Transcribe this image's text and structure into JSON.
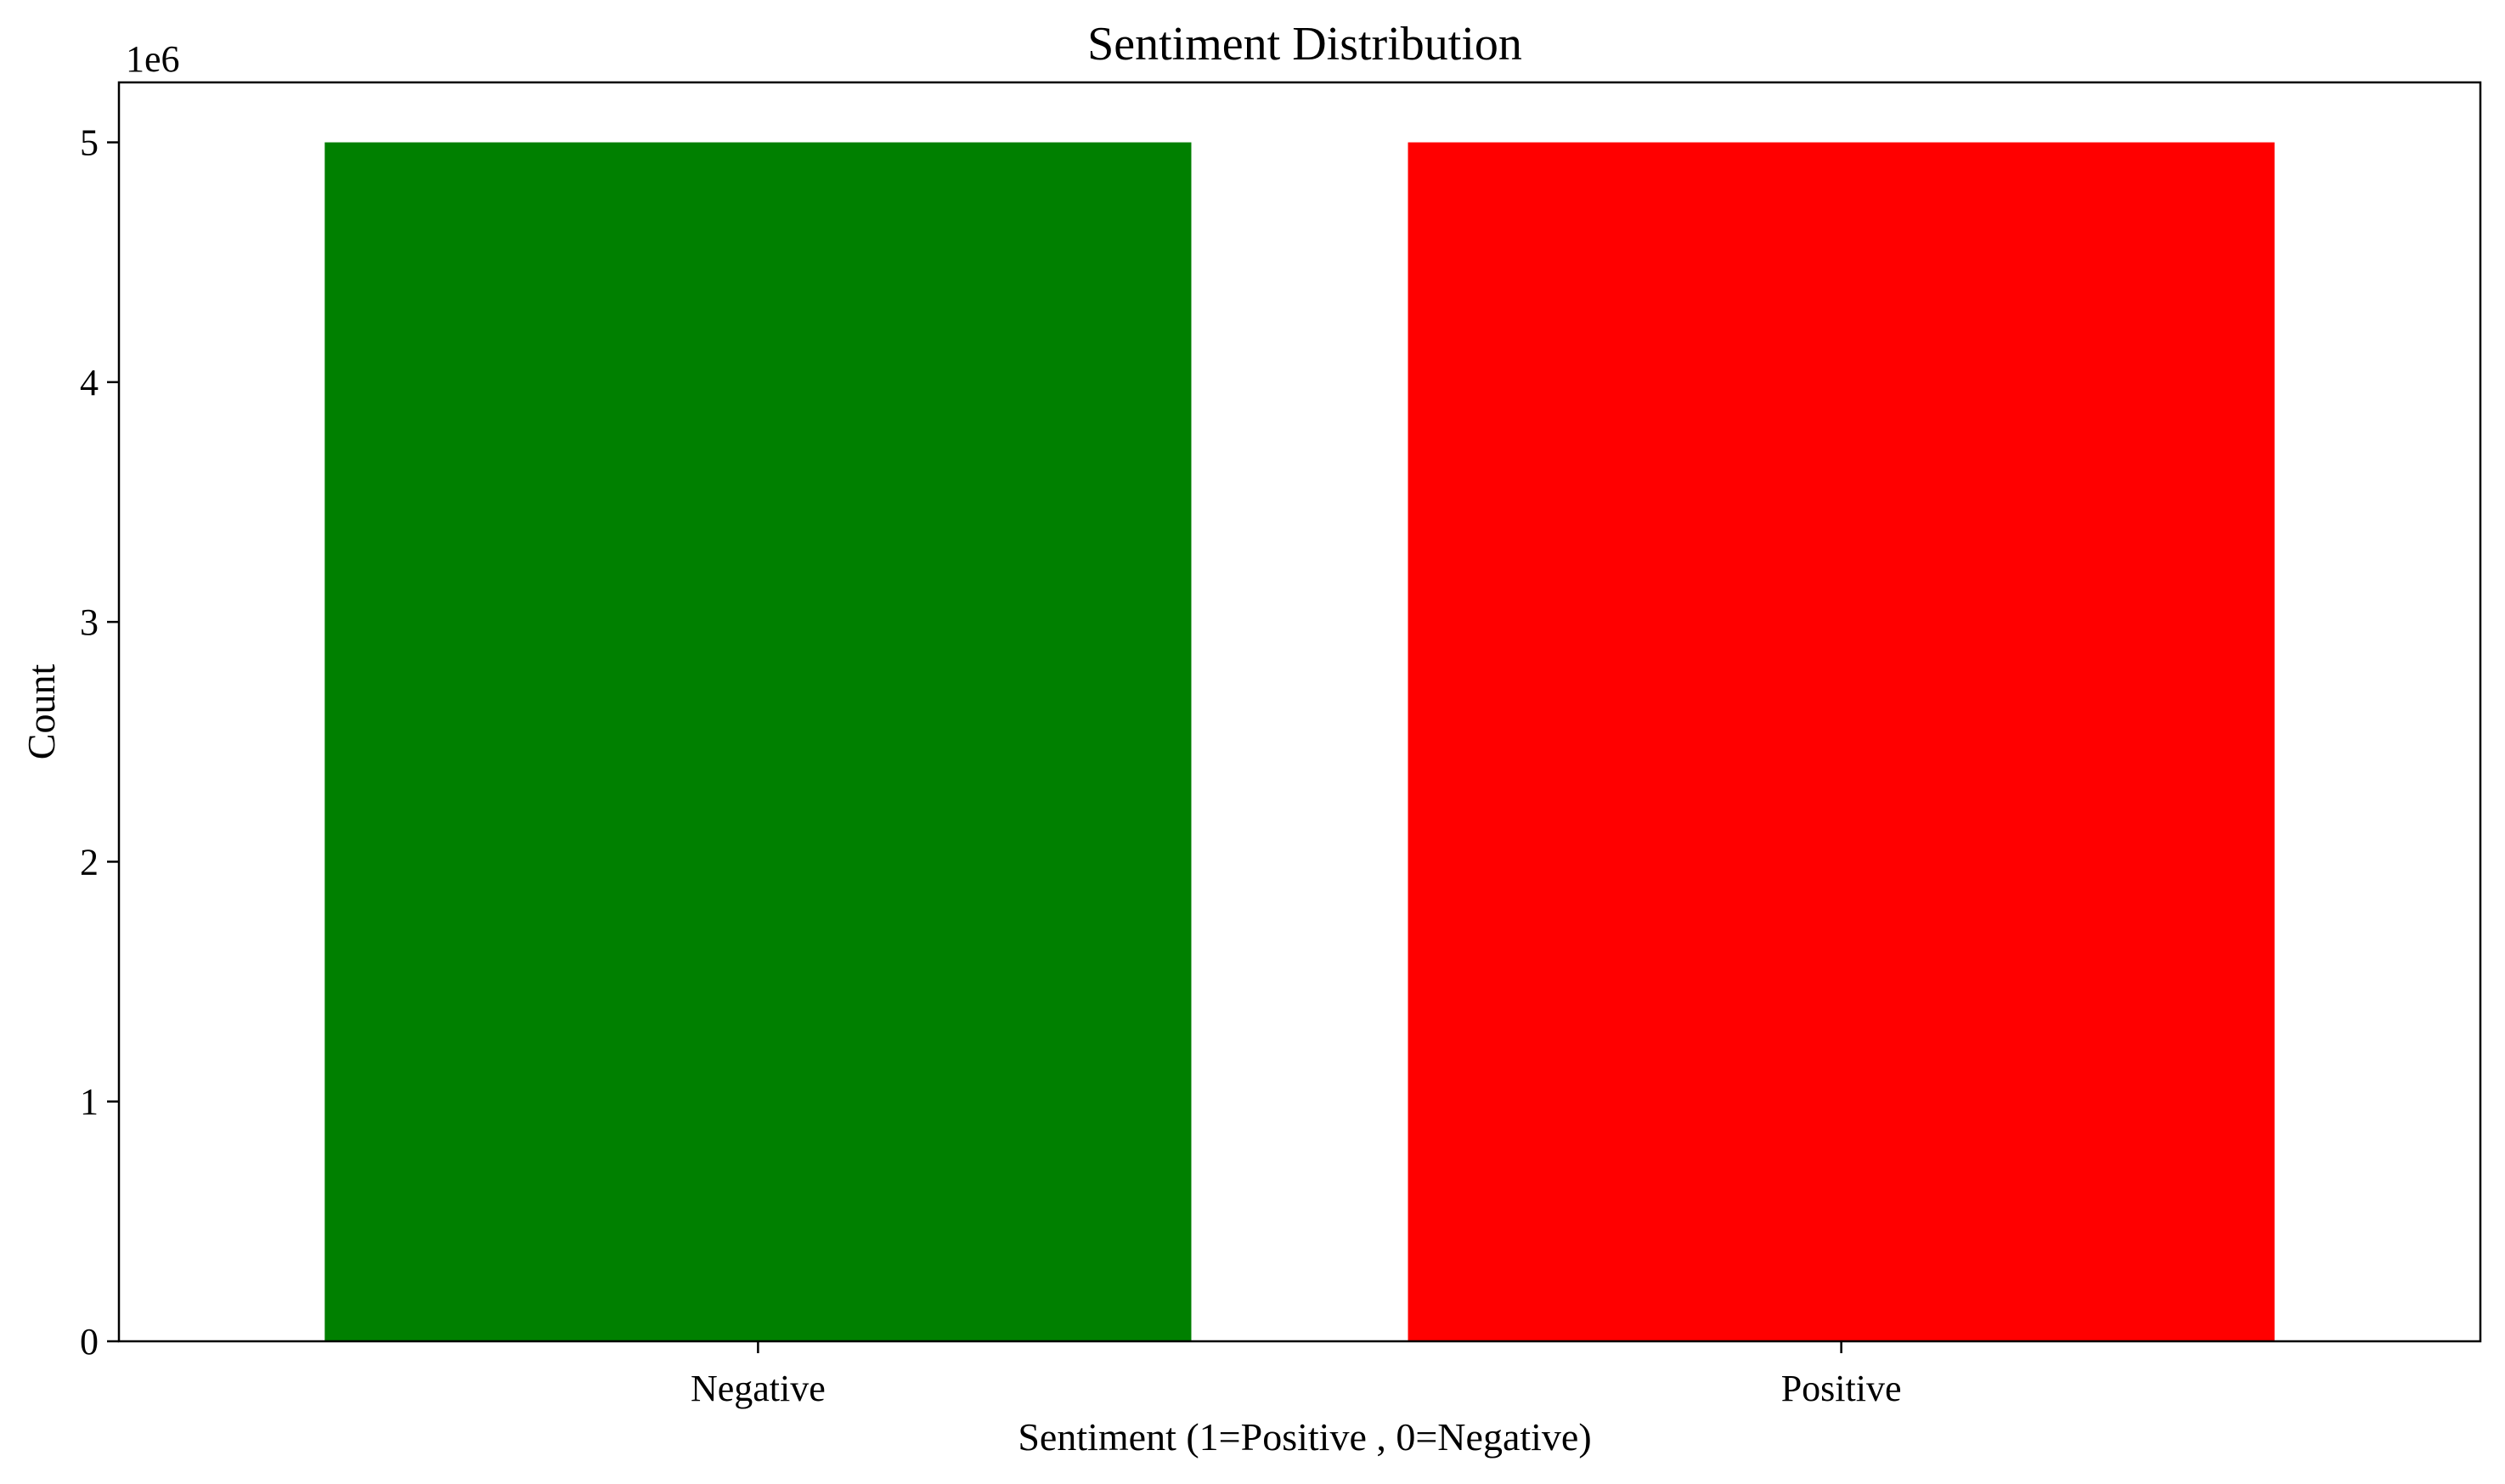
{
  "chart_data": {
    "type": "bar",
    "title": "Sentiment Distribution",
    "xlabel": "Sentiment (1=Positive , 0=Negative)",
    "ylabel": "Count",
    "categories": [
      "Negative",
      "Positive"
    ],
    "values": [
      5000000,
      5000000
    ],
    "colors": [
      "#008000",
      "#ff0000"
    ],
    "ylim": [
      0,
      5250000
    ],
    "y_ticks": [
      0,
      1000000,
      2000000,
      3000000,
      4000000,
      5000000
    ],
    "y_tick_labels": [
      "0",
      "1",
      "2",
      "3",
      "4",
      "5"
    ],
    "y_offset_label": "1e6",
    "grid": false,
    "legend": "none"
  }
}
